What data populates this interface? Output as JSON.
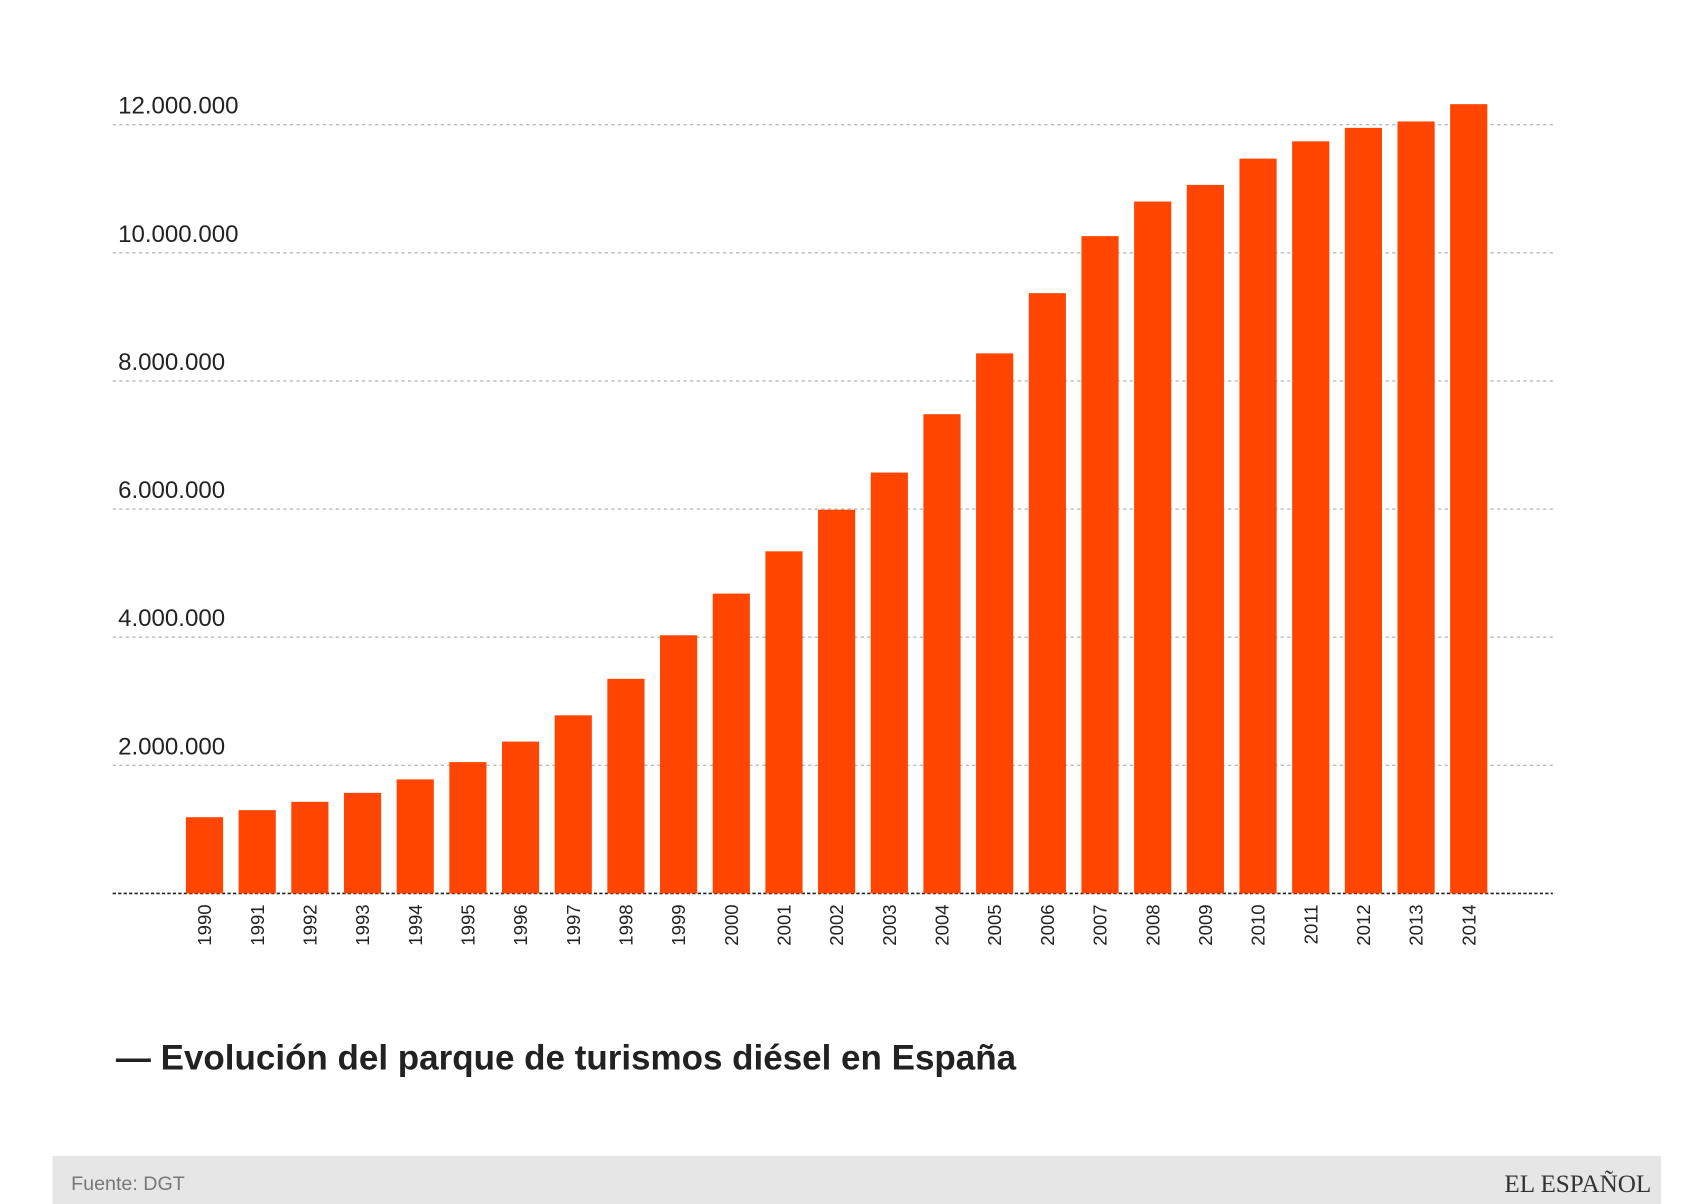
{
  "chart_data": {
    "type": "bar",
    "title": "— Evolución del parque de turismos diésel en España",
    "source": "Fuente: DGT",
    "brand": "EL ESPAÑOL",
    "color": "#ff4500",
    "grid": true,
    "categories": [
      "1990",
      "1991",
      "1992",
      "1993",
      "1994",
      "1995",
      "1996",
      "1997",
      "1998",
      "1999",
      "2000",
      "2001",
      "2002",
      "2003",
      "2004",
      "2005",
      "2006",
      "2007",
      "2008",
      "2009",
      "2010",
      "2011",
      "2012",
      "2013",
      "2014"
    ],
    "values": [
      1190000,
      1300000,
      1430000,
      1570000,
      1780000,
      2050000,
      2370000,
      2780000,
      3350000,
      4030000,
      4680000,
      5340000,
      5990000,
      6570000,
      7480000,
      8430000,
      9370000,
      10260000,
      10800000,
      11060000,
      11470000,
      11740000,
      11950000,
      12050000,
      12320000
    ],
    "ylim": [
      0,
      12000000
    ],
    "yticks": [
      {
        "value": 2000000,
        "label": "2.000.000"
      },
      {
        "value": 4000000,
        "label": "4.000.000"
      },
      {
        "value": 6000000,
        "label": "6.000.000"
      },
      {
        "value": 8000000,
        "label": "8.000.000"
      },
      {
        "value": 10000000,
        "label": "10.000.000"
      },
      {
        "value": 12000000,
        "label": "12.000.000"
      }
    ]
  }
}
